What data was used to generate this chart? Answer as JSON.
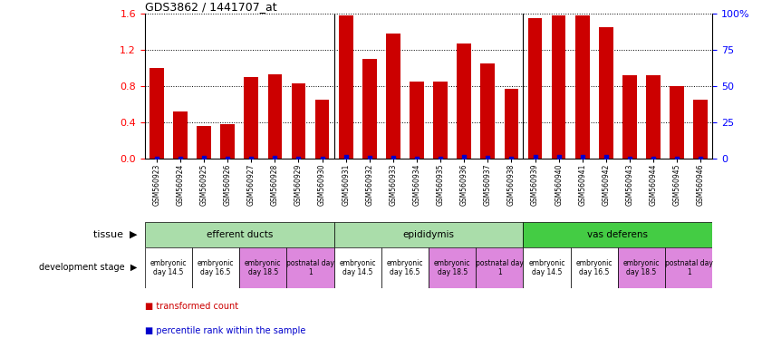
{
  "title": "GDS3862 / 1441707_at",
  "samples": [
    "GSM560923",
    "GSM560924",
    "GSM560925",
    "GSM560926",
    "GSM560927",
    "GSM560928",
    "GSM560929",
    "GSM560930",
    "GSM560931",
    "GSM560932",
    "GSM560933",
    "GSM560934",
    "GSM560935",
    "GSM560936",
    "GSM560937",
    "GSM560938",
    "GSM560939",
    "GSM560940",
    "GSM560941",
    "GSM560942",
    "GSM560943",
    "GSM560944",
    "GSM560945",
    "GSM560946"
  ],
  "transformed_count": [
    1.0,
    0.52,
    0.36,
    0.38,
    0.9,
    0.93,
    0.83,
    0.65,
    1.58,
    1.1,
    1.38,
    0.85,
    0.85,
    1.27,
    1.05,
    0.77,
    1.55,
    1.58,
    1.58,
    1.45,
    0.92,
    0.92,
    0.8,
    0.65
  ],
  "percentile_rank": [
    0.0,
    0.07,
    0.43,
    0.03,
    0.03,
    0.58,
    0.05,
    0.05,
    0.97,
    0.68,
    0.82,
    0.08,
    0.08,
    0.95,
    0.68,
    0.0,
    0.97,
    0.97,
    0.97,
    0.95,
    0.28,
    0.28,
    0.12,
    0.05
  ],
  "ylim_left": [
    0,
    1.6
  ],
  "ylim_right": [
    0,
    100
  ],
  "yticks_left": [
    0.0,
    0.4,
    0.8,
    1.2,
    1.6
  ],
  "yticks_right": [
    0,
    25,
    50,
    75,
    100
  ],
  "bar_color": "#cc0000",
  "dot_color": "#0000cc",
  "tissue_groups": [
    {
      "label": "efferent ducts",
      "start": 0,
      "end": 7,
      "color": "#aaddaa"
    },
    {
      "label": "epididymis",
      "start": 8,
      "end": 15,
      "color": "#aaddaa"
    },
    {
      "label": "vas deferens",
      "start": 16,
      "end": 23,
      "color": "#44cc44"
    }
  ],
  "dev_stage_blocks": [
    {
      "label": "embryonic\nday 14.5",
      "start": 0,
      "end": 1,
      "color": "#ffffff"
    },
    {
      "label": "embryonic\nday 16.5",
      "start": 2,
      "end": 3,
      "color": "#ffffff"
    },
    {
      "label": "embryonic\nday 18.5",
      "start": 4,
      "end": 5,
      "color": "#dd88dd"
    },
    {
      "label": "postnatal day\n1",
      "start": 6,
      "end": 7,
      "color": "#dd88dd"
    },
    {
      "label": "embryonic\nday 14.5",
      "start": 8,
      "end": 9,
      "color": "#ffffff"
    },
    {
      "label": "embryonic\nday 16.5",
      "start": 10,
      "end": 11,
      "color": "#ffffff"
    },
    {
      "label": "embryonic\nday 18.5",
      "start": 12,
      "end": 13,
      "color": "#dd88dd"
    },
    {
      "label": "postnatal day\n1",
      "start": 14,
      "end": 15,
      "color": "#dd88dd"
    },
    {
      "label": "embryonic\nday 14.5",
      "start": 16,
      "end": 17,
      "color": "#ffffff"
    },
    {
      "label": "embryonic\nday 16.5",
      "start": 18,
      "end": 19,
      "color": "#ffffff"
    },
    {
      "label": "embryonic\nday 18.5",
      "start": 20,
      "end": 21,
      "color": "#dd88dd"
    },
    {
      "label": "postnatal day\n1",
      "start": 22,
      "end": 23,
      "color": "#dd88dd"
    }
  ],
  "legend_bar_label": "transformed count",
  "legend_dot_label": "percentile rank within the sample",
  "tissue_label": "tissue",
  "dev_stage_label": "development stage",
  "background_color": "#ffffff"
}
